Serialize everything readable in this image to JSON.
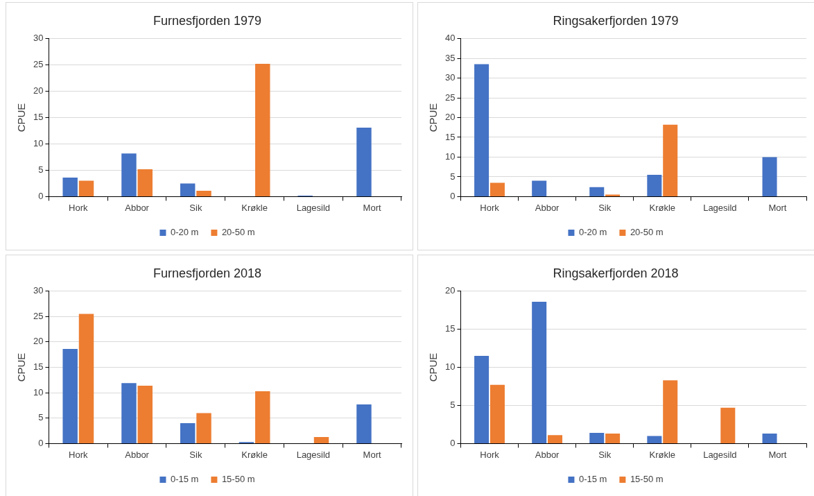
{
  "chart_data": [
    {
      "type": "bar",
      "title": "Furnesfjorden 1979",
      "ylabel": "CPUE",
      "categories": [
        "Hork",
        "Abbor",
        "Sik",
        "Krøkle",
        "Lagesild",
        "Mort"
      ],
      "ylim": [
        0,
        30
      ],
      "yticks": [
        0,
        5,
        10,
        15,
        20,
        25,
        30
      ],
      "grid": "y",
      "legend": "bottom",
      "series": [
        {
          "name": "0-20 m",
          "color": "#4472c4",
          "values": [
            3.6,
            8.2,
            2.5,
            0,
            0.2,
            13.1
          ]
        },
        {
          "name": "20-50 m",
          "color": "#ed7d31",
          "values": [
            3.0,
            5.2,
            1.1,
            25.2,
            0,
            0
          ]
        }
      ]
    },
    {
      "type": "bar",
      "title": "Ringsakerfjorden 1979",
      "ylabel": "CPUE",
      "categories": [
        "Hork",
        "Abbor",
        "Sik",
        "Krøkle",
        "Lagesild",
        "Mort"
      ],
      "ylim": [
        0,
        40
      ],
      "yticks": [
        0,
        5,
        10,
        15,
        20,
        25,
        30,
        35,
        40
      ],
      "grid": "y",
      "legend": "bottom",
      "series": [
        {
          "name": "0-20 m",
          "color": "#4472c4",
          "values": [
            33.5,
            4.0,
            2.4,
            5.5,
            0,
            10.0
          ]
        },
        {
          "name": "20-50 m",
          "color": "#ed7d31",
          "values": [
            3.5,
            0,
            0.5,
            18.2,
            0,
            0
          ]
        }
      ]
    },
    {
      "type": "bar",
      "title": "Furnesfjorden 2018",
      "ylabel": "CPUE",
      "categories": [
        "Hork",
        "Abbor",
        "Sik",
        "Krøkle",
        "Lagesild",
        "Mort"
      ],
      "ylim": [
        0,
        30
      ],
      "yticks": [
        0,
        5,
        10,
        15,
        20,
        25,
        30
      ],
      "grid": "y",
      "legend": "bottom",
      "series": [
        {
          "name": "0-15 m",
          "color": "#4472c4",
          "values": [
            18.6,
            11.9,
            4.0,
            0.3,
            0,
            7.7
          ]
        },
        {
          "name": "15-50 m",
          "color": "#ed7d31",
          "values": [
            25.5,
            11.4,
            6.0,
            10.3,
            1.3,
            0
          ]
        }
      ]
    },
    {
      "type": "bar",
      "title": "Ringsakerfjorden 2018",
      "ylabel": "CPUE",
      "categories": [
        "Hork",
        "Abbor",
        "Sik",
        "Krøkle",
        "Lagesild",
        "Mort"
      ],
      "ylim": [
        0,
        20
      ],
      "yticks": [
        0,
        5,
        10,
        15,
        20
      ],
      "grid": "y",
      "legend": "bottom",
      "series": [
        {
          "name": "0-15 m",
          "color": "#4472c4",
          "values": [
            11.5,
            18.6,
            1.4,
            1.0,
            0,
            1.3
          ]
        },
        {
          "name": "15-50 m",
          "color": "#ed7d31",
          "values": [
            7.7,
            1.1,
            1.3,
            8.3,
            4.7,
            0
          ]
        }
      ]
    }
  ]
}
